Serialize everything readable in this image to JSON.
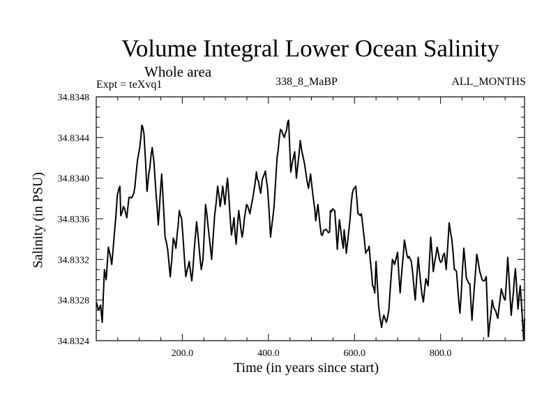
{
  "header": {
    "title": "Volume Integral Lower Ocean Salinity",
    "subtitle": "Whole area",
    "expt_label": "Expt = teXvq1",
    "center_label": "338_8_MaBP",
    "right_label": "ALL_MONTHS"
  },
  "chart_data": {
    "type": "line",
    "title": "Volume Integral Lower Ocean Salinity",
    "subtitle": "Whole area",
    "xlabel": "Time (in years since start)",
    "ylabel": "Salinity (in PSU)",
    "xlim": [
      0,
      995
    ],
    "ylim": [
      34.8324,
      34.8348
    ],
    "x_ticks": [
      200,
      400,
      600,
      800
    ],
    "x_tick_labels": [
      "200.0",
      "400.0",
      "600.0",
      "800.0"
    ],
    "x_minor_step": 50,
    "y_ticks": [
      34.8324,
      34.8328,
      34.8332,
      34.8336,
      34.834,
      34.8344,
      34.8348
    ],
    "y_tick_labels": [
      "34.8324",
      "34.8328",
      "34.8332",
      "34.8336",
      "34.8340",
      "34.8344",
      "34.8348"
    ],
    "y_minor_step": 0.0001,
    "grid": false,
    "legend": "none",
    "line_color": "#000000",
    "series": [
      {
        "name": "salinity",
        "x": [
          0,
          5,
          10,
          14,
          19,
          23,
          28,
          32,
          36,
          42,
          49,
          55,
          57,
          63,
          71,
          76,
          85,
          90,
          96,
          101,
          106,
          111,
          118,
          122,
          130,
          134,
          144,
          152,
          160,
          166,
          172,
          179,
          185,
          193,
          198,
          208,
          216,
          222,
          233,
          244,
          248,
          254,
          262,
          268,
          275,
          282,
          288,
          294,
          299,
          305,
          314,
          320,
          325,
          331,
          339,
          349,
          357,
          364,
          372,
          382,
          386,
          393,
          398,
          405,
          413,
          420,
          428,
          437,
          447,
          452,
          461,
          465,
          474,
          481,
          493,
          498,
          505,
          510,
          515,
          523,
          531,
          542,
          544,
          554,
          560,
          565,
          574,
          576,
          581,
          587,
          595,
          603,
          608,
          616,
          619,
          626,
          634,
          642,
          647,
          650,
          656,
          663,
          668,
          674,
          680,
          688,
          693,
          700,
          706,
          716,
          722,
          732,
          741,
          748,
          754,
          760,
          766,
          771,
          777,
          783,
          792,
          800,
          809,
          813,
          820,
          826,
          832,
          837,
          845,
          854,
          860,
          868,
          873,
          884,
          891,
          899,
          906,
          911,
          920,
          925,
          933,
          941,
          950,
          956,
          964,
          974,
          980,
          985,
          990,
          993,
          995
        ],
        "y": [
          34.83278,
          34.8327,
          34.83275,
          34.83258,
          34.8331,
          34.833,
          34.83332,
          34.83325,
          34.83315,
          34.83345,
          34.83383,
          34.83392,
          34.83363,
          34.83372,
          34.83361,
          34.83381,
          34.83383,
          34.83392,
          34.83418,
          34.8343,
          34.83452,
          34.83443,
          34.83387,
          34.83404,
          34.8343,
          34.83416,
          34.83354,
          34.83404,
          34.83342,
          34.8333,
          34.83303,
          34.83341,
          34.83331,
          34.83368,
          34.83361,
          34.83303,
          34.83318,
          34.83299,
          34.83357,
          34.8331,
          34.8332,
          34.83374,
          34.83344,
          34.8332,
          34.83363,
          34.83392,
          34.83372,
          34.83392,
          34.83374,
          34.834,
          34.83344,
          34.83361,
          34.83335,
          34.83368,
          34.83342,
          34.83374,
          34.83365,
          34.83381,
          34.83406,
          34.83385,
          34.83399,
          34.83407,
          34.8339,
          34.83342,
          34.83372,
          34.8342,
          34.83448,
          34.8344,
          34.83457,
          34.83406,
          34.83426,
          34.834,
          34.83437,
          34.8342,
          34.8339,
          34.83404,
          34.83378,
          34.83358,
          34.83374,
          34.83344,
          34.83349,
          34.83347,
          34.83368,
          34.83368,
          34.8333,
          34.83359,
          34.83331,
          34.83349,
          34.83326,
          34.83349,
          34.83385,
          34.83392,
          34.83365,
          34.83365,
          34.83354,
          34.83326,
          34.83333,
          34.83294,
          34.83287,
          34.83318,
          34.83274,
          34.83253,
          34.83265,
          34.83258,
          34.83271,
          34.8332,
          34.83315,
          34.83327,
          34.83287,
          34.83339,
          34.83324,
          34.83318,
          34.8328,
          34.83322,
          34.83296,
          34.83278,
          34.83301,
          34.83294,
          34.83342,
          34.83308,
          34.83332,
          34.83317,
          34.83326,
          34.8331,
          34.83356,
          34.8334,
          34.8331,
          34.83308,
          34.83267,
          34.83331,
          34.83301,
          34.83296,
          34.8326,
          34.83325,
          34.83308,
          34.83299,
          34.83303,
          34.83244,
          34.8328,
          34.83271,
          34.83262,
          34.83291,
          34.8328,
          34.83322,
          34.83265,
          34.83311,
          34.83271,
          34.83294,
          34.83262,
          34.83241,
          34.83262
        ]
      }
    ]
  }
}
